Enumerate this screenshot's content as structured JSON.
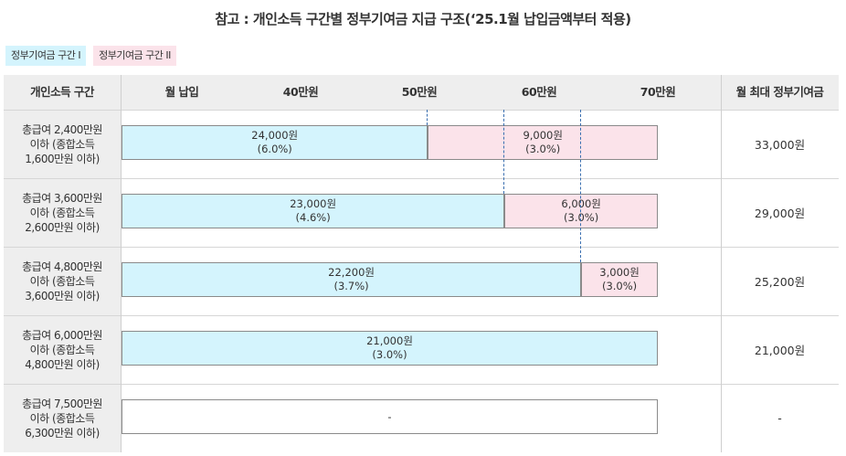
{
  "title": "참고 : 개인소득 구간별 정부기여금 지급 구조(‘25.1월 납입금액부터 적용)",
  "legend": [
    {
      "label": "정부기여금 구간 I",
      "color": "#d4f4fd"
    },
    {
      "label": "정부기여금 구간 II",
      "color": "#fbe3ea"
    }
  ],
  "header": {
    "income": "개인소득 구간",
    "monthly": "월 납입",
    "ticks": [
      "40만원",
      "50만원",
      "60만원",
      "70만원"
    ],
    "max": "월 최대 정부기여금"
  },
  "rows": [
    {
      "label": [
        "총급여 2,400만원",
        "이하 (종합소득",
        "1,600만원 이하)"
      ],
      "segments": [
        {
          "zone": 1,
          "from": 0,
          "to": 40,
          "amount": "24,000원",
          "rate": "(6.0%)"
        },
        {
          "zone": 2,
          "from": 40,
          "to": 70,
          "amount": "9,000원",
          "rate": "(3.0%)"
        }
      ],
      "max": "33,000원"
    },
    {
      "label": [
        "총급여 3,600만원",
        "이하 (종합소득",
        "2,600만원 이하)"
      ],
      "segments": [
        {
          "zone": 1,
          "from": 0,
          "to": 50,
          "amount": "23,000원",
          "rate": "(4.6%)"
        },
        {
          "zone": 2,
          "from": 50,
          "to": 70,
          "amount": "6,000원",
          "rate": "(3.0%)"
        }
      ],
      "max": "29,000원"
    },
    {
      "label": [
        "총급여 4,800만원",
        "이하 (종합소득",
        "3,600만원 이하)"
      ],
      "segments": [
        {
          "zone": 1,
          "from": 0,
          "to": 60,
          "amount": "22,200원",
          "rate": "(3.7%)"
        },
        {
          "zone": 2,
          "from": 60,
          "to": 70,
          "amount": "3,000원",
          "rate": "(3.0%)"
        }
      ],
      "max": "25,200원"
    },
    {
      "label": [
        "총급여 6,000만원",
        "이하 (종합소득",
        "4,800만원 이하)"
      ],
      "segments": [
        {
          "zone": 1,
          "from": 0,
          "to": 70,
          "amount": "21,000원",
          "rate": "(3.0%)"
        }
      ],
      "max": "21,000원"
    },
    {
      "label": [
        "총급여 7,500만원",
        "이하 (종합소득",
        "6,300만원 이하)"
      ],
      "segments": [
        {
          "zone": 0,
          "from": 0,
          "to": 70,
          "amount": "-",
          "rate": ""
        }
      ],
      "max": "-"
    }
  ]
}
